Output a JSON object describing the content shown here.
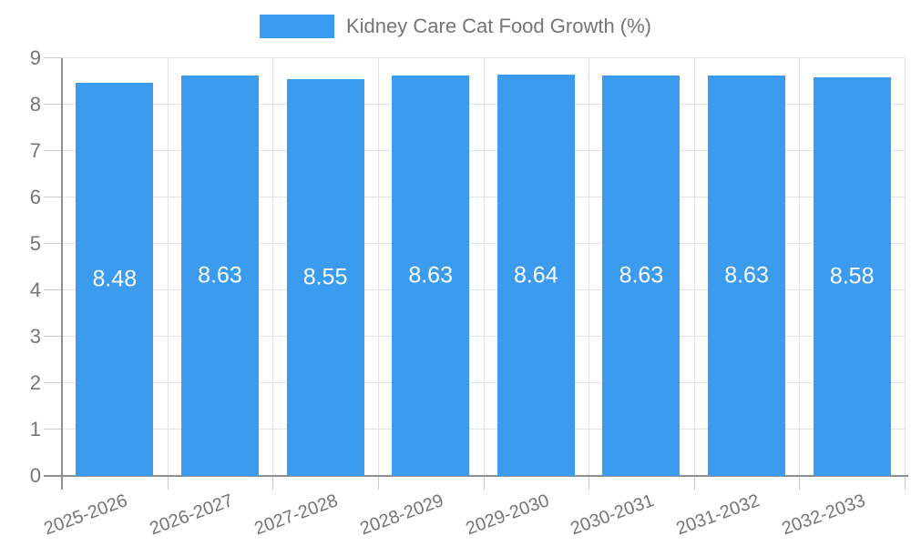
{
  "chart_data": {
    "type": "bar",
    "title": "Kidney Care Cat Food Growth (%)",
    "categories": [
      "2025-2026",
      "2026-2027",
      "2027-2028",
      "2028-2029",
      "2029-2030",
      "2030-2031",
      "2031-2032",
      "2032-2033"
    ],
    "values": [
      8.48,
      8.63,
      8.55,
      8.63,
      8.64,
      8.63,
      8.63,
      8.58
    ],
    "value_decimals": 2,
    "xlabel": "",
    "ylabel": "",
    "ylim": [
      0,
      9
    ],
    "ytick_step": 1,
    "grid": true,
    "legend_position": "top",
    "bar_width_fraction": 0.735,
    "colors": {
      "bar": "#3B9BEE",
      "value_label": "#FFFFFF",
      "axis_text": "#757575",
      "grid_line": "#E3E3E3",
      "tick_line": "#C9C9C9",
      "axis_line": "#8F8F8F",
      "background": "#FFFFFF"
    }
  }
}
